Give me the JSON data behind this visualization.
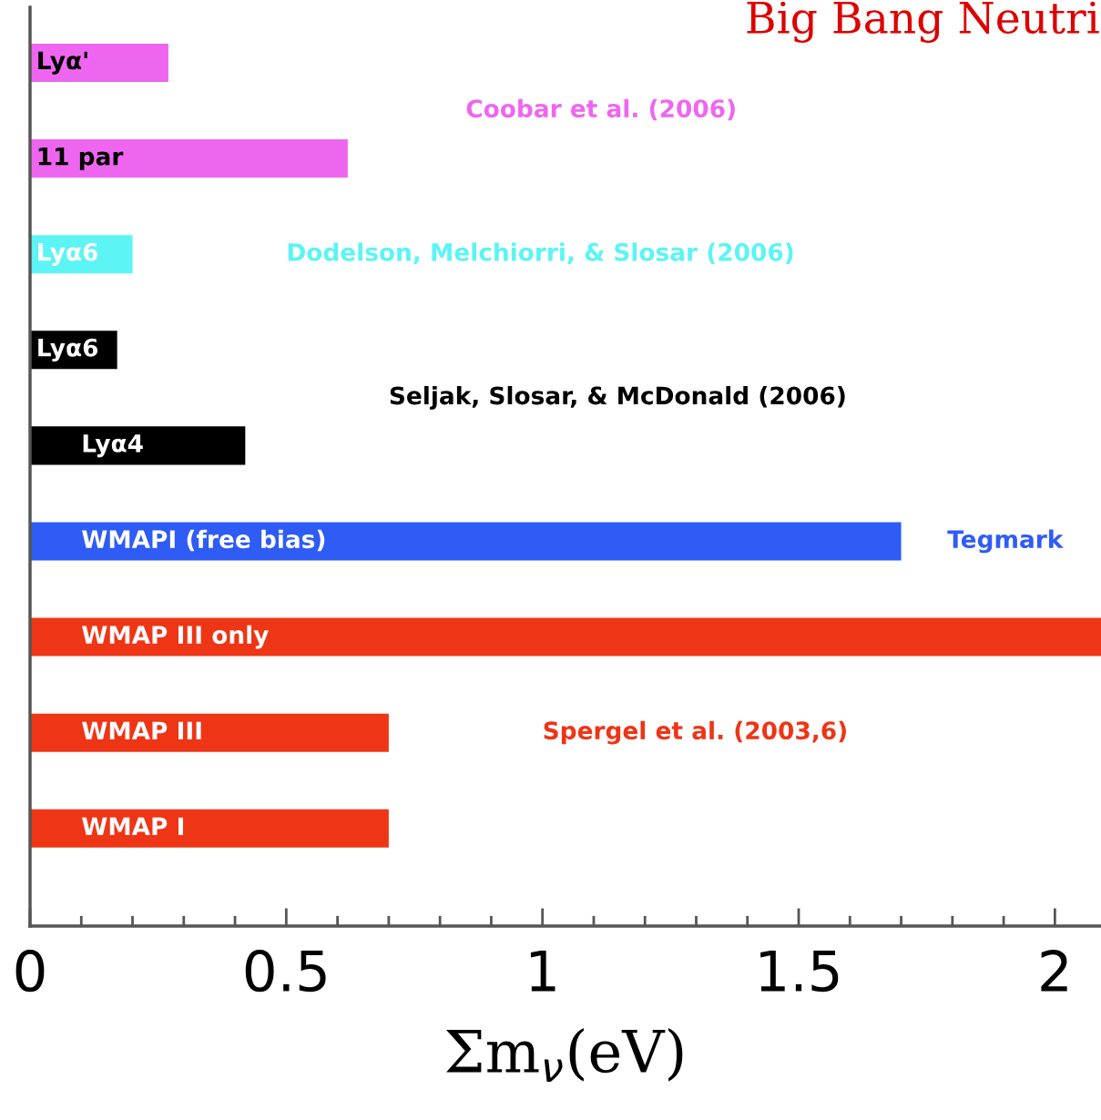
{
  "chart_data": {
    "type": "bar",
    "orientation": "horizontal",
    "title": "Big Bang Neutri",
    "xlabel": "Σm$_{ν}$(eV)",
    "categories": [
      "Lyα'",
      "11 par",
      "Lyα6",
      "Lyα6",
      "Lyα4",
      "WMAPI (free bias)",
      "WMAP III only",
      "WMAP III",
      "WMAP I"
    ],
    "values": [
      0.27,
      0.62,
      0.2,
      0.17,
      0.42,
      1.7,
      2.09,
      0.7,
      0.7
    ],
    "colors": [
      "#ee66f0",
      "#ee66f0",
      "#5cf4f4",
      "#000000",
      "#000000",
      "#2f5cf5",
      "#ee3516",
      "#ee3516",
      "#ee3516"
    ],
    "xlim": [
      0,
      2.09
    ],
    "xticks": [
      0,
      {
        "value": 0.1,
        "label": null
      },
      {
        "value": 0.2,
        "label": null
      },
      {
        "value": 0.3,
        "label": null
      },
      {
        "value": 0.4,
        "label": null
      },
      0.5,
      {
        "value": 0.6,
        "label": null
      },
      {
        "value": 0.7,
        "label": null
      },
      {
        "value": 0.8,
        "label": null
      },
      {
        "value": 0.9,
        "label": null
      },
      1,
      {
        "value": 1.1,
        "label": null
      },
      {
        "value": 1.2,
        "label": null
      },
      {
        "value": 1.3,
        "label": null
      },
      {
        "value": 1.4,
        "label": null
      },
      1.5,
      {
        "value": 1.6,
        "label": null
      },
      {
        "value": 1.7,
        "label": null
      },
      {
        "value": 1.8,
        "label": null
      },
      {
        "value": 1.9,
        "label": null
      },
      2
    ],
    "annotations": [
      "Coobar et al. (2006)",
      "Dodelson, Melchiorri, & Slosar (2006)",
      "Seljak, Slosar, & McDonald (2006)",
      "Tegmark",
      "Spergel et al. (2003,6)"
    ],
    "grid": false
  }
}
